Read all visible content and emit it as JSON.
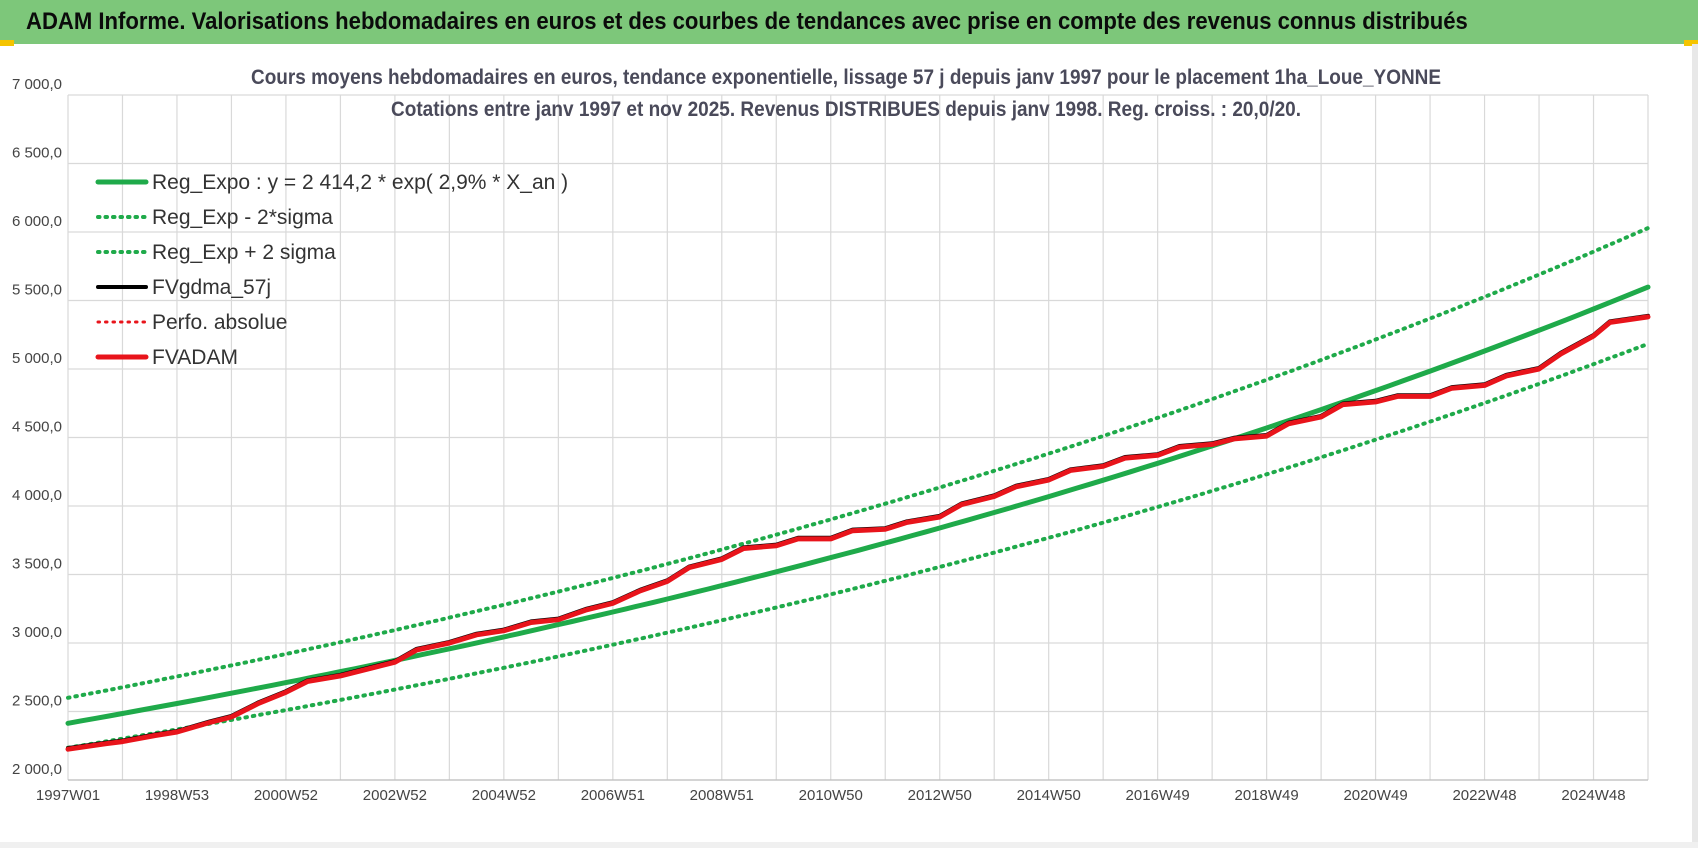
{
  "header": {
    "title": "ADAM Informe. Valorisations hebdomadaires en euros et des courbes de tendances avec prise en compte des revenus connus distribués"
  },
  "chart_data": {
    "type": "line",
    "title": "Cours moyens hebdomadaires en euros, tendance exponentielle, lissage 57 j depuis janv 1997 pour le placement 1ha_Loue_YONNE",
    "subtitle": "Cotations entre janv 1997 et nov 2025. Revenus DISTRIBUES depuis janv 1998. Reg. croiss. : 20,0/20.",
    "xlabel": "",
    "ylabel": "",
    "ylim": [
      2000,
      7000
    ],
    "yticks": [
      {
        "value": 2000,
        "label": "2 000,0"
      },
      {
        "value": 2500,
        "label": "2 500,0"
      },
      {
        "value": 3000,
        "label": "3 000,0"
      },
      {
        "value": 3500,
        "label": "3 500,0"
      },
      {
        "value": 4000,
        "label": "4 000,0"
      },
      {
        "value": 4500,
        "label": "4 500,0"
      },
      {
        "value": 5000,
        "label": "5 000,0"
      },
      {
        "value": 5500,
        "label": "5 500,0"
      },
      {
        "value": 6000,
        "label": "6 000,0"
      },
      {
        "value": 6500,
        "label": "6 500,0"
      },
      {
        "value": 7000,
        "label": "7 000,0"
      }
    ],
    "xlim": [
      1997.0,
      2026.0
    ],
    "xticks": [
      {
        "value": 1997.0,
        "label": "1997W01"
      },
      {
        "value": 1999.0,
        "label": "1998W53"
      },
      {
        "value": 2001.0,
        "label": "2000W52"
      },
      {
        "value": 2003.0,
        "label": "2002W52"
      },
      {
        "value": 2005.0,
        "label": "2004W52"
      },
      {
        "value": 2007.0,
        "label": "2006W51"
      },
      {
        "value": 2009.0,
        "label": "2008W51"
      },
      {
        "value": 2011.0,
        "label": "2010W50"
      },
      {
        "value": 2013.0,
        "label": "2012W50"
      },
      {
        "value": 2015.0,
        "label": "2014W50"
      },
      {
        "value": 2017.0,
        "label": "2016W49"
      },
      {
        "value": 2019.0,
        "label": "2018W49"
      },
      {
        "value": 2021.0,
        "label": "2020W49"
      },
      {
        "value": 2023.0,
        "label": "2022W48"
      },
      {
        "value": 2025.0,
        "label": "2024W48"
      }
    ],
    "grid": true,
    "legend_position": "top-left",
    "regression": {
      "a": 2414.2,
      "rate": 0.029,
      "sigma_factor_low": 0.926,
      "sigma_factor_high": 1.077
    },
    "series": [
      {
        "name": "Reg_Expo : y = 2 414,2 * exp( 2,9% *  X_an )",
        "color": "#1faa4a",
        "style": "solid",
        "width": 5,
        "kind": "reg"
      },
      {
        "name": "Reg_Exp - 2*sigma",
        "color": "#1faa4a",
        "style": "dotted",
        "width": 4,
        "kind": "low"
      },
      {
        "name": "Reg_Exp + 2 sigma",
        "color": "#1faa4a",
        "style": "dotted",
        "width": 4,
        "kind": "high"
      },
      {
        "name": "FVgdma_57j",
        "color": "#000000",
        "style": "solid",
        "width": 4,
        "kind": "smooth"
      },
      {
        "name": "Perfo. absolue",
        "color": "#e8141b",
        "style": "dotted",
        "width": 3,
        "kind": "perf"
      },
      {
        "name": "FVADAM",
        "color": "#e8141b",
        "style": "solid",
        "width": 5,
        "kind": "fv"
      }
    ],
    "fv_points": [
      [
        1997.0,
        2225
      ],
      [
        1997.7,
        2265
      ],
      [
        1998.0,
        2280
      ],
      [
        1998.6,
        2325
      ],
      [
        1999.0,
        2350
      ],
      [
        1999.6,
        2420
      ],
      [
        2000.0,
        2460
      ],
      [
        2000.5,
        2560
      ],
      [
        2001.0,
        2640
      ],
      [
        2001.4,
        2720
      ],
      [
        2002.0,
        2760
      ],
      [
        2002.6,
        2820
      ],
      [
        2003.0,
        2860
      ],
      [
        2003.4,
        2950
      ],
      [
        2004.0,
        3000
      ],
      [
        2004.5,
        3060
      ],
      [
        2005.0,
        3090
      ],
      [
        2005.5,
        3150
      ],
      [
        2006.0,
        3170
      ],
      [
        2006.5,
        3240
      ],
      [
        2007.0,
        3290
      ],
      [
        2007.5,
        3380
      ],
      [
        2008.0,
        3450
      ],
      [
        2008.4,
        3550
      ],
      [
        2009.0,
        3610
      ],
      [
        2009.4,
        3690
      ],
      [
        2010.0,
        3710
      ],
      [
        2010.4,
        3760
      ],
      [
        2011.0,
        3760
      ],
      [
        2011.4,
        3820
      ],
      [
        2012.0,
        3830
      ],
      [
        2012.4,
        3880
      ],
      [
        2013.0,
        3920
      ],
      [
        2013.4,
        4010
      ],
      [
        2014.0,
        4070
      ],
      [
        2014.4,
        4140
      ],
      [
        2015.0,
        4190
      ],
      [
        2015.4,
        4260
      ],
      [
        2016.0,
        4290
      ],
      [
        2016.4,
        4350
      ],
      [
        2017.0,
        4370
      ],
      [
        2017.4,
        4430
      ],
      [
        2018.0,
        4450
      ],
      [
        2018.4,
        4490
      ],
      [
        2019.0,
        4510
      ],
      [
        2019.4,
        4600
      ],
      [
        2020.0,
        4650
      ],
      [
        2020.4,
        4740
      ],
      [
        2021.0,
        4760
      ],
      [
        2021.4,
        4800
      ],
      [
        2022.0,
        4800
      ],
      [
        2022.4,
        4860
      ],
      [
        2023.0,
        4880
      ],
      [
        2023.4,
        4950
      ],
      [
        2024.0,
        5000
      ],
      [
        2024.4,
        5110
      ],
      [
        2025.0,
        5240
      ],
      [
        2025.3,
        5340
      ],
      [
        2026.0,
        5380
      ]
    ]
  }
}
